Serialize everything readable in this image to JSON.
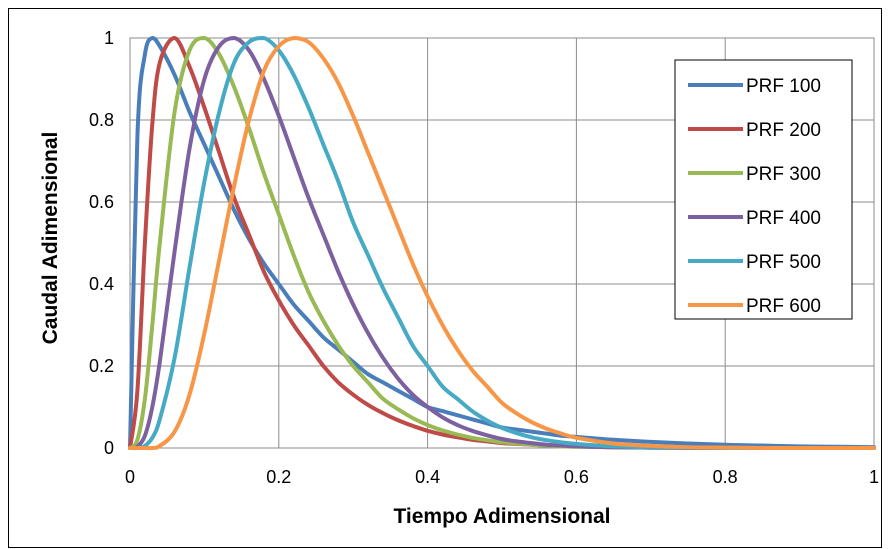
{
  "chart_data": {
    "type": "line",
    "xlabel": "Tiempo Adimensional",
    "ylabel": "Caudal Adimensional",
    "xlim": [
      0,
      1
    ],
    "ylim": [
      0,
      1
    ],
    "x_ticks": [
      "0",
      "0.2",
      "0.4",
      "0.6",
      "0.8",
      "1"
    ],
    "y_ticks": [
      "0",
      "0.2",
      "0.4",
      "0.6",
      "0.8",
      "1"
    ],
    "grid": true,
    "legend_position": "top-right",
    "x": [
      0,
      0.01,
      0.02,
      0.03,
      0.04,
      0.06,
      0.08,
      0.1,
      0.12,
      0.14,
      0.16,
      0.18,
      0.2,
      0.22,
      0.24,
      0.26,
      0.28,
      0.3,
      0.32,
      0.34,
      0.36,
      0.38,
      0.4,
      0.42,
      0.44,
      0.46,
      0.48,
      0.5,
      0.52,
      0.54,
      0.56,
      0.58,
      0.6,
      0.65,
      0.7,
      0.75,
      0.8,
      0.85,
      0.9,
      0.95,
      1.0
    ],
    "series": [
      {
        "name": "PRF 100",
        "color": "#4a7ebb",
        "values": [
          0,
          0.76,
          0.96,
          1.0,
          0.98,
          0.91,
          0.82,
          0.74,
          0.66,
          0.58,
          0.51,
          0.45,
          0.4,
          0.35,
          0.31,
          0.27,
          0.24,
          0.21,
          0.18,
          0.16,
          0.14,
          0.12,
          0.1,
          0.09,
          0.08,
          0.07,
          0.06,
          0.05,
          0.045,
          0.04,
          0.035,
          0.03,
          0.027,
          0.02,
          0.015,
          0.011,
          0.008,
          0.006,
          0.004,
          0.003,
          0.002
        ]
      },
      {
        "name": "PRF 200",
        "color": "#be4b48",
        "values": [
          0,
          0.14,
          0.5,
          0.79,
          0.94,
          1.0,
          0.93,
          0.83,
          0.72,
          0.61,
          0.52,
          0.43,
          0.36,
          0.3,
          0.25,
          0.2,
          0.16,
          0.13,
          0.105,
          0.085,
          0.068,
          0.054,
          0.042,
          0.033,
          0.026,
          0.02,
          0.016,
          0.012,
          0.01,
          0.008,
          0.006,
          0.005,
          0.004,
          0.002,
          0.001,
          0.001,
          0,
          0,
          0,
          0,
          0
        ]
      },
      {
        "name": "PRF 300",
        "color": "#98b954",
        "values": [
          0,
          0.02,
          0.12,
          0.3,
          0.5,
          0.82,
          0.97,
          1.0,
          0.96,
          0.88,
          0.78,
          0.67,
          0.57,
          0.47,
          0.38,
          0.31,
          0.25,
          0.2,
          0.16,
          0.12,
          0.095,
          0.073,
          0.056,
          0.043,
          0.033,
          0.025,
          0.019,
          0.014,
          0.011,
          0.008,
          0.006,
          0.004,
          0.003,
          0.002,
          0.001,
          0,
          0,
          0,
          0,
          0,
          0
        ]
      },
      {
        "name": "PRF 400",
        "color": "#7d60a0",
        "values": [
          0,
          0.003,
          0.03,
          0.1,
          0.21,
          0.48,
          0.73,
          0.9,
          0.98,
          1.0,
          0.97,
          0.9,
          0.81,
          0.71,
          0.61,
          0.52,
          0.43,
          0.35,
          0.28,
          0.22,
          0.17,
          0.13,
          0.1,
          0.075,
          0.056,
          0.042,
          0.031,
          0.022,
          0.016,
          0.012,
          0.008,
          0.006,
          0.004,
          0.002,
          0.001,
          0,
          0,
          0,
          0,
          0,
          0
        ]
      },
      {
        "name": "PRF 500",
        "color": "#46aac5",
        "values": [
          0,
          0,
          0.005,
          0.025,
          0.07,
          0.22,
          0.44,
          0.65,
          0.82,
          0.94,
          0.99,
          1.0,
          0.97,
          0.91,
          0.83,
          0.74,
          0.65,
          0.55,
          0.47,
          0.39,
          0.32,
          0.25,
          0.2,
          0.15,
          0.12,
          0.09,
          0.067,
          0.049,
          0.036,
          0.026,
          0.019,
          0.014,
          0.01,
          0.004,
          0.002,
          0.001,
          0,
          0,
          0,
          0,
          0
        ]
      },
      {
        "name": "PRF 600",
        "color": "#f79646",
        "values": [
          0,
          0,
          0,
          0,
          0.005,
          0.04,
          0.13,
          0.28,
          0.46,
          0.64,
          0.8,
          0.92,
          0.98,
          1.0,
          0.99,
          0.95,
          0.89,
          0.81,
          0.72,
          0.63,
          0.54,
          0.45,
          0.37,
          0.3,
          0.24,
          0.19,
          0.15,
          0.11,
          0.084,
          0.063,
          0.047,
          0.035,
          0.025,
          0.011,
          0.005,
          0.002,
          0.001,
          0,
          0,
          0,
          0
        ]
      }
    ]
  }
}
